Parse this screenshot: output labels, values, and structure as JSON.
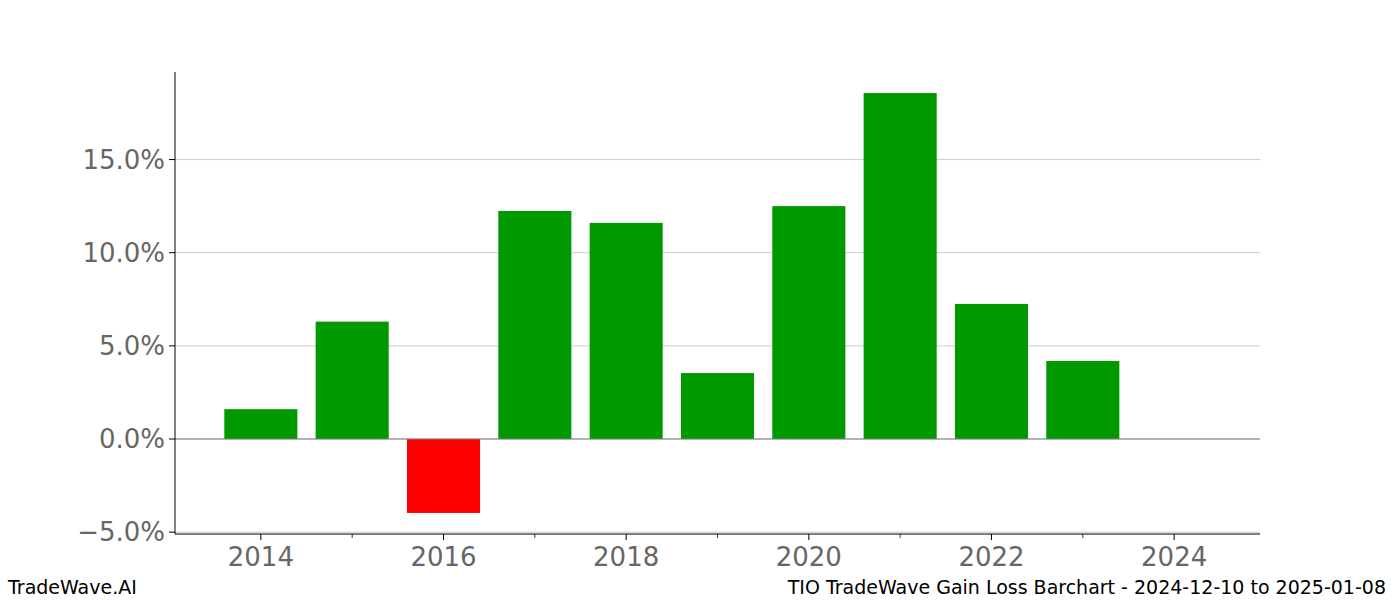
{
  "chart_data": {
    "type": "bar",
    "title": "TIO TradeWave Gain Loss Barchart - 2024-12-10 to 2025-01-08",
    "annotations": [
      "TradeWave.AI"
    ],
    "x": [
      2014,
      2015,
      2016,
      2017,
      2018,
      2019,
      2020,
      2021,
      2022,
      2023,
      2024
    ],
    "values": [
      1.6,
      6.3,
      -3.97,
      12.24,
      11.6,
      3.54,
      12.5,
      18.57,
      7.25,
      4.19,
      0
    ],
    "colors": [
      "#009900",
      "#009900",
      "#ff0000",
      "#009900",
      "#009900",
      "#009900",
      "#009900",
      "#009900",
      "#009900",
      "#009900",
      "#009900"
    ],
    "xlim": [
      2013.06,
      2024.94
    ],
    "xticks": [
      2014,
      2016,
      2018,
      2020,
      2022,
      2024
    ],
    "ylim": [
      -5.1,
      19.7
    ],
    "yticks": [
      {
        "value": -5,
        "label": "−5.0%"
      },
      {
        "value": 0,
        "label": "0.0%"
      },
      {
        "value": 5,
        "label": "5.0%"
      },
      {
        "value": 10,
        "label": "10.0%"
      },
      {
        "value": 15,
        "label": "15.0%"
      }
    ],
    "grid": true
  }
}
